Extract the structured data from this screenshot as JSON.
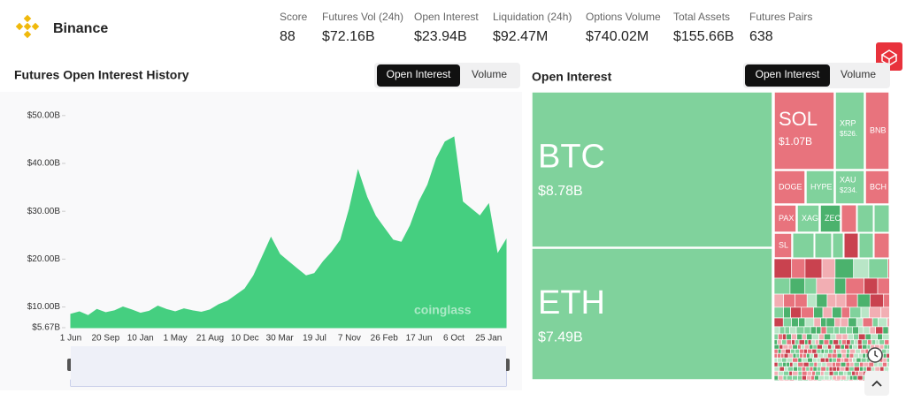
{
  "header": {
    "brand": "Binance",
    "stats": [
      {
        "label": "Score",
        "value": "88"
      },
      {
        "label": "Futures Vol (24h)",
        "value": "$72.16B"
      },
      {
        "label": "Open Interest",
        "value": "$23.94B"
      },
      {
        "label": "Liquidation (24h)",
        "value": "$92.47M"
      },
      {
        "label": "Options Volume",
        "value": "$740.02M"
      },
      {
        "label": "Total Assets",
        "value": "$155.66B"
      },
      {
        "label": "Futures Pairs",
        "value": "638"
      }
    ]
  },
  "chart_data": {
    "type": "area",
    "title": "Futures Open Interest History",
    "tabs": [
      "Open Interest",
      "Volume"
    ],
    "watermark": "coinglass",
    "color": "#45cf80",
    "grid": false,
    "categories": [
      "1 Jun",
      null,
      null,
      null,
      "20 Sep",
      null,
      null,
      null,
      "10 Jan",
      null,
      null,
      null,
      "1 May",
      null,
      null,
      null,
      "21 Aug",
      null,
      null,
      null,
      "10 Dec",
      null,
      null,
      null,
      "30 Mar",
      null,
      null,
      null,
      "19 Jul",
      null,
      null,
      null,
      "7 Nov",
      null,
      null,
      null,
      "26 Feb",
      null,
      null,
      null,
      "17 Jun",
      null,
      null,
      null,
      "6 Oct",
      null,
      null,
      null,
      "25 Jan",
      null,
      null
    ],
    "values": [
      8.5,
      9,
      8.2,
      9.5,
      8.8,
      9.2,
      10,
      9.4,
      8.7,
      9.1,
      10.2,
      9.5,
      9.0,
      9.6,
      9.2,
      8.9,
      9.4,
      10.5,
      11.2,
      12.5,
      13.8,
      16.5,
      20.5,
      24.5,
      21.0,
      19.5,
      18.0,
      16.5,
      17.0,
      19.5,
      21.5,
      24.0,
      30.5,
      38.5,
      33.0,
      29.0,
      26.5,
      24.0,
      23.5,
      27.0,
      32.0,
      35.5,
      41.0,
      44.5,
      45.5,
      32.0,
      30.5,
      29.0,
      31.5,
      21.0,
      24.0
    ],
    "ylim": [
      5.67,
      52
    ],
    "yticks": [
      {
        "value": 5.67,
        "label": "$5.67B"
      },
      {
        "value": 10,
        "label": "$10.00B"
      },
      {
        "value": 20,
        "label": "$20.00B"
      },
      {
        "value": 30,
        "label": "$30.00B"
      },
      {
        "value": 40,
        "label": "$40.00B"
      },
      {
        "value": 50,
        "label": "$50.00B"
      }
    ]
  },
  "treemap": {
    "title": "Open Interest",
    "tabs": [
      "Open Interest",
      "Volume"
    ],
    "tiles": [
      {
        "label": "BTC",
        "value_label": "$8.78B",
        "color": "#80d29c"
      },
      {
        "label": "ETH",
        "value_label": "$7.49B",
        "color": "#80d29c"
      },
      {
        "label": "SOL",
        "value_label": "$1.07B",
        "color": "#e8737d"
      },
      {
        "label": "XRP",
        "value_label": "$526.",
        "color": "#80d29c"
      },
      {
        "label": "BNB",
        "color": "#e8737d"
      },
      {
        "label": "DOGE",
        "color": "#e8737d"
      },
      {
        "label": "HYPE",
        "color": "#80d29c"
      },
      {
        "label": "XAU",
        "value_label": "$234.",
        "color": "#80d29c"
      },
      {
        "label": "BCH",
        "color": "#e8737d"
      },
      {
        "label": "PAX",
        "color": "#e8737d"
      },
      {
        "label": "XAG",
        "color": "#80d29c"
      },
      {
        "label": "ZEC",
        "color": "#4bb26d"
      },
      {
        "label": "SL",
        "color": "#e8737d"
      }
    ]
  }
}
